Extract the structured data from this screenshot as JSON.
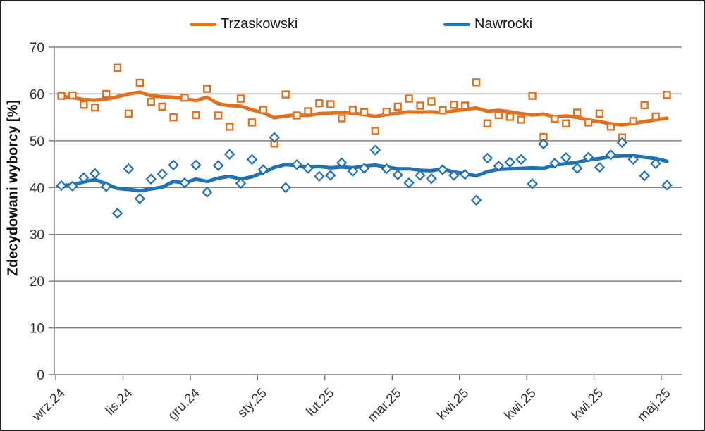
{
  "legend": [
    {
      "label": "Trzaskowski",
      "color": "#E2711D"
    },
    {
      "label": "Nawrocki",
      "color": "#1F72B5"
    }
  ],
  "colors": {
    "gridline": "#808080",
    "axis": "#808080",
    "tick_text": "#333333",
    "marker_fill": "#ffffff"
  },
  "chart_data": {
    "type": "scatter+line",
    "title": "",
    "xlabel": "",
    "ylabel": "Zdecydowani wyborcy [%]",
    "ylim": [
      0,
      70
    ],
    "y_ticks": [
      0,
      10,
      20,
      30,
      40,
      50,
      60,
      70
    ],
    "x_tick_labels": [
      "wrz.24",
      "lis.24",
      "gru.24",
      "sty.25",
      "lut.25",
      "mar.25",
      "kwi.25",
      "kwi.25",
      "kwi.25",
      "maj.25"
    ],
    "x_tick_indices": [
      0,
      6,
      12,
      18,
      24,
      30,
      36,
      42,
      48,
      54
    ],
    "grid": "horizontal",
    "legend_position": "top",
    "series": [
      {
        "name": "Trzaskowski",
        "color": "#E2711D",
        "marker": "square",
        "scatter": [
          59.6,
          59.7,
          57.7,
          57.1,
          60.0,
          65.6,
          55.8,
          62.4,
          58.3,
          57.3,
          55.0,
          59.2,
          55.5,
          61.1,
          55.4,
          53.0,
          59.0,
          53.9,
          56.6,
          49.4,
          59.9,
          55.4,
          56.3,
          58.0,
          57.8,
          54.8,
          56.6,
          56.1,
          52.1,
          56.2,
          57.3,
          59.0,
          57.5,
          58.4,
          56.5,
          57.7,
          57.5,
          62.5,
          53.7,
          55.5,
          55.1,
          54.5,
          59.6,
          50.8,
          54.7,
          53.7,
          56.0,
          53.9,
          55.8,
          53.0,
          50.7,
          54.2,
          57.6,
          55.2,
          59.8
        ],
        "trend": [
          59.5,
          59.2,
          58.8,
          58.7,
          58.9,
          59.4,
          60.0,
          60.4,
          59.6,
          59.4,
          59.3,
          59.0,
          58.6,
          59.3,
          57.9,
          57.5,
          57.4,
          56.6,
          56.0,
          54.9,
          55.3,
          55.5,
          55.4,
          55.8,
          55.9,
          56.1,
          55.9,
          55.6,
          55.2,
          55.6,
          55.9,
          56.2,
          56.1,
          56.2,
          56.0,
          56.4,
          56.7,
          57.0,
          56.3,
          56.5,
          56.2,
          55.8,
          55.5,
          55.7,
          55.1,
          55.3,
          55.0,
          54.4,
          54.1,
          53.6,
          53.4,
          53.7,
          54.1,
          54.5,
          54.8
        ]
      },
      {
        "name": "Nawrocki",
        "color": "#1F72B5",
        "marker": "diamond",
        "scatter": [
          40.4,
          40.3,
          42.1,
          43.0,
          40.2,
          34.5,
          44.0,
          37.6,
          41.8,
          42.9,
          44.8,
          41.0,
          44.8,
          39.0,
          44.7,
          47.1,
          40.9,
          46.0,
          43.8,
          50.7,
          40.0,
          44.9,
          44.1,
          42.4,
          42.6,
          45.3,
          43.5,
          44.1,
          48.0,
          44.0,
          42.7,
          41.0,
          42.6,
          41.9,
          43.8,
          42.6,
          42.8,
          37.3,
          46.3,
          44.6,
          45.4,
          46.0,
          40.8,
          49.3,
          45.2,
          46.4,
          44.1,
          46.5,
          44.3,
          47.0,
          49.6,
          46.0,
          42.5,
          45.1,
          40.5
        ],
        "trend": [
          40.4,
          40.6,
          41.2,
          41.7,
          40.8,
          39.8,
          39.6,
          39.3,
          39.7,
          40.1,
          41.3,
          41.0,
          41.8,
          41.3,
          42.0,
          42.4,
          41.8,
          42.3,
          43.2,
          44.3,
          44.9,
          44.7,
          44.4,
          44.5,
          44.2,
          44.4,
          44.2,
          44.6,
          44.8,
          44.4,
          44.0,
          44.0,
          43.7,
          43.6,
          44.0,
          43.3,
          43.0,
          42.5,
          43.4,
          43.9,
          44.0,
          44.1,
          44.2,
          44.1,
          44.8,
          45.1,
          45.4,
          45.9,
          46.2,
          46.6,
          46.8,
          46.8,
          46.5,
          46.2,
          45.6
        ]
      }
    ]
  }
}
